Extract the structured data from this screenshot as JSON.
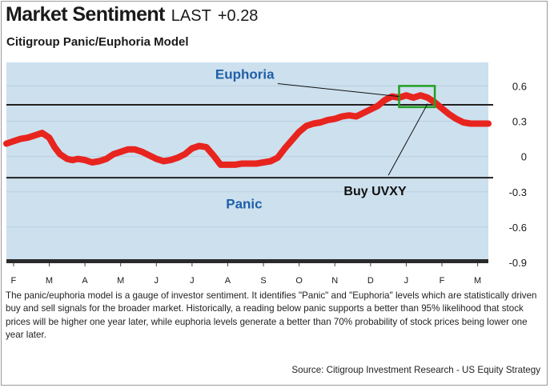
{
  "header": {
    "title": "Market Sentiment",
    "last_label": "LAST",
    "last_value": "+0.28",
    "subtitle": "Citigroup Panic/Euphoria Model"
  },
  "chart_data": {
    "type": "line",
    "title": "Market Sentiment",
    "subtitle": "Citigroup Panic/Euphoria Model",
    "xlabel": "",
    "ylabel": "",
    "ylim": [
      -0.9,
      0.8
    ],
    "y_ticks": [
      0.6,
      0.3,
      0,
      -0.3,
      -0.6,
      -0.9
    ],
    "y_tick_labels": [
      "0.6",
      "0.3",
      "0",
      "-0.3",
      "-0.6",
      "-0.9"
    ],
    "x_tick_labels": [
      "F",
      "M",
      "A",
      "M",
      "J",
      "J",
      "A",
      "S",
      "O",
      "N",
      "D",
      "J",
      "F",
      "M"
    ],
    "grid": false,
    "reference_lines": [
      {
        "label": "Euphoria",
        "value": 0.44
      },
      {
        "label": "Panic",
        "value": -0.18
      }
    ],
    "series": [
      {
        "name": "",
        "color": "#e8241f",
        "x": [
          0,
          0.2,
          0.4,
          0.6,
          0.8,
          1.0,
          1.2,
          1.35,
          1.5,
          1.7,
          1.85,
          2.0,
          2.2,
          2.4,
          2.6,
          2.8,
          3.0,
          3.2,
          3.4,
          3.6,
          3.8,
          4.0,
          4.2,
          4.4,
          4.6,
          4.8,
          5.0,
          5.2,
          5.4,
          5.6,
          5.8,
          6.0,
          6.2,
          6.4,
          6.6,
          6.8,
          7.0,
          7.2,
          7.4,
          7.6,
          7.8,
          8.0,
          8.2,
          8.4,
          8.6,
          8.8,
          9.0,
          9.2,
          9.4,
          9.6,
          9.8,
          10.0,
          10.2,
          10.4,
          10.6,
          10.8,
          11.0,
          11.2,
          11.4,
          11.6,
          11.8,
          12.0,
          12.2,
          12.4,
          12.6,
          12.8,
          13.0,
          13.2,
          13.5
        ],
        "values": [
          0.11,
          0.13,
          0.15,
          0.16,
          0.18,
          0.2,
          0.16,
          0.08,
          0.02,
          -0.02,
          -0.03,
          -0.02,
          -0.03,
          -0.05,
          -0.04,
          -0.02,
          0.02,
          0.04,
          0.06,
          0.06,
          0.04,
          0.01,
          -0.02,
          -0.04,
          -0.03,
          -0.01,
          0.02,
          0.07,
          0.09,
          0.08,
          0.01,
          -0.07,
          -0.07,
          -0.07,
          -0.06,
          -0.06,
          -0.06,
          -0.05,
          -0.04,
          -0.01,
          0.07,
          0.14,
          0.21,
          0.26,
          0.28,
          0.29,
          0.31,
          0.32,
          0.34,
          0.35,
          0.34,
          0.37,
          0.4,
          0.43,
          0.48,
          0.51,
          0.5,
          0.52,
          0.5,
          0.52,
          0.5,
          0.46,
          0.41,
          0.36,
          0.32,
          0.29,
          0.28,
          0.28,
          0.28
        ]
      }
    ],
    "annotations": [
      {
        "text": "Euphoria",
        "color": "#1e5fa8"
      },
      {
        "text": "Panic",
        "color": "#1e5fa8"
      },
      {
        "text": "Buy UVXY",
        "color": "#111111"
      }
    ],
    "highlight_box_color": "#22a022",
    "plot_background": "#cde0ee"
  },
  "description": "The panic/euphoria model is a gauge of investor sentiment. It identifies \"Panic\" and \"Euphoria\" levels which are statistically driven buy and sell signals for the broader market.  Historically, a reading below panic supports a better than 95% likelihood that stock prices will be higher one year later, while euphoria levels generate a better than 70% probability of stock prices being lower one year later.",
  "source": "Source: Citigroup Investment Research - US Equity Strategy"
}
